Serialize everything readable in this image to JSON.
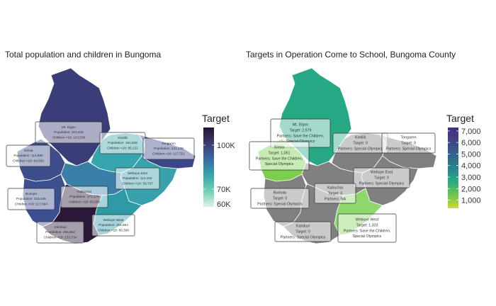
{
  "colors": {
    "background": "#ffffff",
    "no_data": "#808080",
    "region_border": "#ffffff",
    "label_box_fill": "#ffffff",
    "label_box_stroke": "#333333",
    "label_text": "#333333"
  },
  "panels": [
    {
      "title": "Total population and children in Bungoma",
      "legend": {
        "title": "Target",
        "scale": "continuous",
        "palette": [
          "#ddf1e4",
          "#72cfb7",
          "#37a5ad",
          "#366da0",
          "#3e3a73",
          "#241430"
        ],
        "range": [
          58000,
          112000
        ],
        "tick_values": [
          60000,
          70000,
          100000
        ],
        "tick_labels": [
          "60K",
          "70K",
          "100K"
        ]
      },
      "regions": [
        {
          "id": "mt-elgon",
          "name": "Mt. Elgon",
          "fill": "#3a3d78",
          "label_lines": [
            "Mt. Elgon",
            "Population: 203,426",
            "Children <18: 123,538"
          ]
        },
        {
          "id": "sirisia",
          "name": "Sirisia",
          "fill": "#3d4d8a",
          "label_lines": [
            "Sirisia",
            "Population: 113,985",
            "Children <18: 64,959"
          ]
        },
        {
          "id": "kimilili",
          "name": "Kimilili",
          "fill": "#37a5ad",
          "label_lines": [
            "Kimilili",
            "Population: 161,828",
            "Children <18: 85,122"
          ]
        },
        {
          "id": "tongaren",
          "name": "Tongaren",
          "fill": "#3b4588",
          "label_lines": [
            "Tongaren",
            "Population: 221,139",
            "Children <18: 117,721"
          ]
        },
        {
          "id": "webuye-east",
          "name": "Webuye East",
          "fill": "#38a1ab",
          "label_lines": [
            "Webuye East",
            "Population: 114,242",
            "Children <18: 59,767"
          ]
        },
        {
          "id": "bumula",
          "name": "Bumula",
          "fill": "#3c4f8e",
          "label_lines": [
            "Bumula",
            "Population: 215,546",
            "Children <18: 117,694"
          ]
        },
        {
          "id": "kabuchai",
          "name": "Kabuchai",
          "fill": "#3a80a6",
          "label_lines": [
            "Kabuchai",
            "Population: 171,175",
            "Children <18: 93,509"
          ]
        },
        {
          "id": "webuye-west",
          "name": "Webuye West",
          "fill": "#2e9aa6",
          "label_lines": [
            "Webuye West",
            "Population: 151,854",
            "Children <18: 80,398"
          ]
        },
        {
          "id": "kanduyi",
          "name": "Kanduyi",
          "fill": "#2a1838",
          "label_lines": [
            "Kanduyi",
            "Population: 284,862",
            "Children <18: 133,734"
          ]
        }
      ]
    },
    {
      "title": "Targets in Operation Come to School, Bungoma County",
      "legend": {
        "title": "Target",
        "scale": "continuous",
        "palette": [
          "#c8dc3a",
          "#6cc454",
          "#2aa980",
          "#25828e",
          "#33638d",
          "#3f4588",
          "#472c7a"
        ],
        "range": [
          300,
          7300
        ],
        "tick_values": [
          1000,
          2000,
          3000,
          4000,
          5000,
          6000,
          7000
        ],
        "tick_labels": [
          "1,000",
          "2,000",
          "3,000",
          "4,000",
          "5,000",
          "6,000",
          "7,000"
        ]
      },
      "regions": [
        {
          "id": "mt-elgon",
          "name": "Mt. Elgon",
          "fill": "#26a885",
          "label_lines": [
            "Mt. Elgon",
            "Target: 2,579",
            "Partners: Save the Children,",
            "Special Olympics"
          ]
        },
        {
          "id": "sirisia",
          "name": "Sirisia",
          "fill": "#7ccf4c",
          "label_lines": [
            "Sirisia",
            "Target: 1,051",
            "Partners: Save the Children,",
            "Special Olympics"
          ]
        },
        {
          "id": "kimilili",
          "name": "Kimilili",
          "fill": "#808080",
          "label_lines": [
            "Kimilili",
            "Target: 0",
            "Partners: Special Olympics"
          ]
        },
        {
          "id": "tongaren",
          "name": "Tongaren",
          "fill": "#808080",
          "label_lines": [
            "Tongaren",
            "Target: 0",
            "Partners: Special Olympics"
          ]
        },
        {
          "id": "webuye-east",
          "name": "Webuye East",
          "fill": "#808080",
          "label_lines": [
            "Webuye East",
            "Target: 0",
            "Partners: Special Olympics"
          ]
        },
        {
          "id": "bumula",
          "name": "Bumula",
          "fill": "#808080",
          "label_lines": [
            "Bumula",
            "Target: 0",
            "Partners: Special Olympics"
          ]
        },
        {
          "id": "kabuchai",
          "name": "Kabuchai",
          "fill": "#808080",
          "label_lines": [
            "Kabuchai",
            "Target: 0",
            "Partners: NA"
          ]
        },
        {
          "id": "webuye-west",
          "name": "Webuye West",
          "fill": "#8ed76a",
          "label_lines": [
            "Webuye West",
            "Target: 1,333",
            "Partners: Save the Children,",
            "Special Olympics"
          ]
        },
        {
          "id": "kanduyi",
          "name": "Kanduyi",
          "fill": "#808080",
          "label_lines": [
            "Kanduyi",
            "Target: 0",
            "Partners: Special Olympics"
          ]
        }
      ]
    }
  ]
}
